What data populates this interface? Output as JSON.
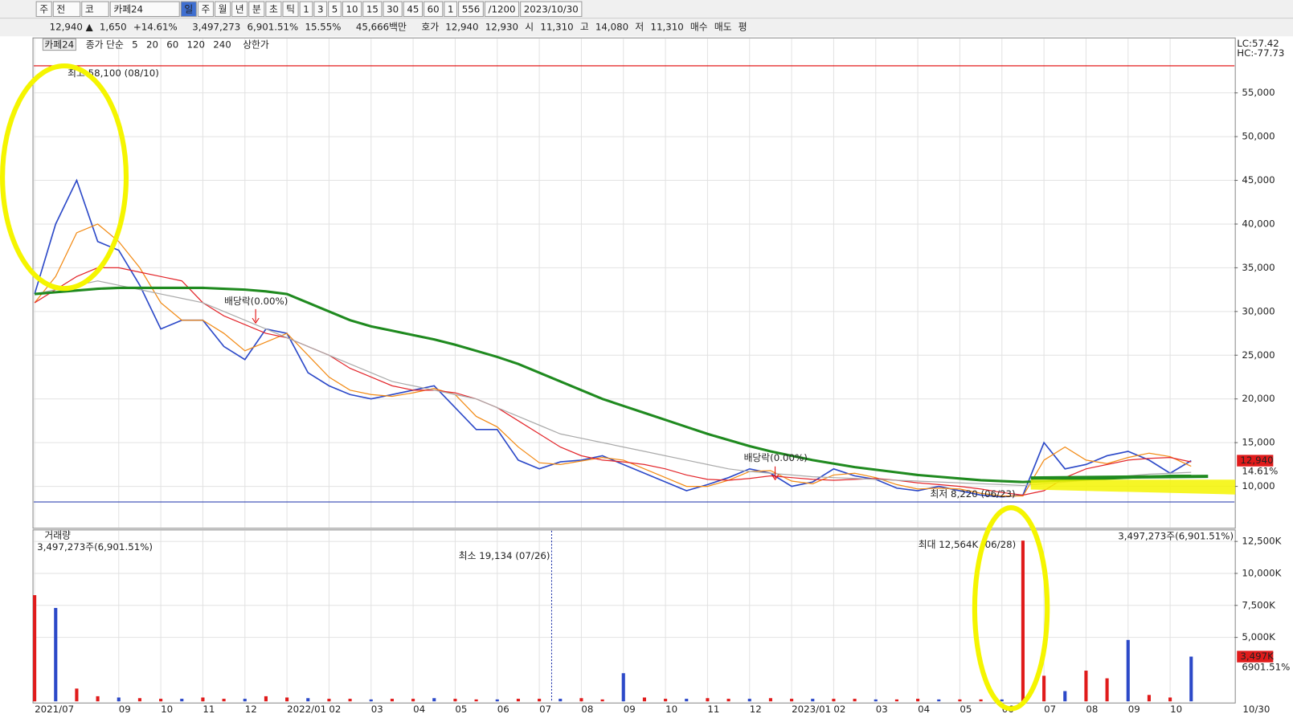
{
  "toolbar": {
    "items": [
      "주",
      "전",
      "코",
      "카페24",
      "일",
      "주",
      "월",
      "년",
      "분",
      "초",
      "틱",
      "1",
      "3",
      "5",
      "10",
      "15",
      "30",
      "45",
      "60",
      "1",
      "556",
      "/1200",
      "2023/10/30"
    ]
  },
  "quote": {
    "items": [
      "12,940 ▲",
      "1,650",
      "+14.61%",
      "3,497,273",
      "6,901.51%",
      "15.55%",
      "45,666백만",
      "호가",
      "12,940",
      "12,930",
      "시",
      "11,310",
      "고",
      "14,080",
      "저",
      "11,310",
      "매수",
      "매도",
      "평"
    ]
  },
  "chart_data": [
    {
      "type": "line",
      "title": "카페24",
      "subtitle": "종가 단순",
      "categories": [
        "2021/07",
        null,
        null,
        null,
        "09",
        null,
        "10",
        null,
        "11",
        null,
        "12",
        null,
        "2022/01",
        null,
        "02",
        null,
        "03",
        null,
        "04",
        null,
        "05",
        null,
        "06",
        null,
        "07",
        null,
        "08",
        null,
        "09",
        null,
        "10",
        null,
        "11",
        null,
        "12",
        null,
        "2023/01",
        null,
        "02",
        null,
        "03",
        null,
        "04",
        null,
        "05",
        null,
        "06",
        null,
        "07",
        null,
        "08",
        null,
        "09",
        null,
        "10",
        null
      ],
      "x_end_label": "10/30",
      "series": [
        {
          "name": "5",
          "color": "#2c49c8",
          "values": [
            32000,
            40000,
            45000,
            38000,
            37000,
            33000,
            28000,
            29000,
            29000,
            26000,
            24500,
            28000,
            27500,
            23000,
            21500,
            20500,
            20000,
            20500,
            21000,
            21500,
            19000,
            16500,
            16500,
            13000,
            12000,
            12800,
            13000,
            13500,
            12500,
            11500,
            10500,
            9500,
            10200,
            11000,
            12000,
            11500,
            10000,
            10500,
            12000,
            11200,
            10800,
            9800,
            9500,
            10000,
            9500,
            9000,
            8800,
            9000,
            15000,
            12000,
            12500,
            13500,
            14000,
            13000,
            11500,
            12940
          ]
        },
        {
          "name": "20",
          "color": "#f28a14",
          "values": [
            31000,
            34000,
            39000,
            40000,
            38000,
            35000,
            31000,
            29000,
            29000,
            27500,
            25500,
            26500,
            27500,
            25000,
            22500,
            21000,
            20500,
            20300,
            20700,
            21200,
            20500,
            18000,
            16800,
            14500,
            12700,
            12500,
            12900,
            13300,
            13000,
            12000,
            11000,
            10000,
            10000,
            10700,
            11700,
            11800,
            10600,
            10300,
            11300,
            11500,
            11000,
            10200,
            9700,
            9800,
            9700,
            9200,
            8900,
            8900,
            13000,
            14500,
            13000,
            12600,
            13300,
            13800,
            13400,
            12300
          ]
        },
        {
          "name": "60",
          "color": "#e3262b",
          "values": [
            31000,
            32500,
            34000,
            35000,
            35000,
            34500,
            34000,
            33500,
            31000,
            29500,
            28500,
            27500,
            27000,
            26000,
            25000,
            23500,
            22500,
            21500,
            21000,
            21000,
            20700,
            20000,
            19000,
            17500,
            16000,
            14500,
            13500,
            13000,
            12800,
            12500,
            12000,
            11300,
            10800,
            10700,
            10900,
            11200,
            11000,
            10800,
            10700,
            10800,
            10900,
            10700,
            10400,
            10200,
            10000,
            9700,
            9300,
            9000,
            9500,
            11000,
            12000,
            12500,
            13000,
            13200,
            13300,
            12800
          ]
        },
        {
          "name": "120",
          "color": "#aaaaaa",
          "values": [
            32000,
            32500,
            33000,
            33500,
            33000,
            32500,
            32000,
            31500,
            31000,
            30000,
            29000,
            28000,
            27000,
            26000,
            25000,
            24000,
            23000,
            22000,
            21500,
            21000,
            20500,
            20000,
            19000,
            18000,
            17000,
            16000,
            15500,
            15000,
            14500,
            14000,
            13500,
            13000,
            12500,
            12000,
            11700,
            11500,
            11300,
            11100,
            11000,
            10900,
            10800,
            10700,
            10600,
            10500,
            10400,
            10300,
            10200,
            10100,
            10300,
            10500,
            10700,
            11000,
            11200,
            11400,
            11500,
            11600
          ]
        },
        {
          "name": "240",
          "color": "#1f8a1f",
          "values": [
            32000,
            32200,
            32400,
            32600,
            32700,
            32700,
            32700,
            32700,
            32700,
            32600,
            32500,
            32300,
            32000,
            31000,
            30000,
            29000,
            28300,
            27800,
            27300,
            26800,
            26200,
            25500,
            24800,
            24000,
            23000,
            22000,
            21000,
            20000,
            19200,
            18400,
            17600,
            16800,
            16000,
            15300,
            14600,
            14000,
            13500,
            13000,
            12600,
            12200,
            11900,
            11600,
            11300,
            11100,
            10900,
            10700,
            10600,
            10500,
            10600,
            10700,
            10800,
            10900,
            11000,
            11100,
            11200,
            11200
          ]
        }
      ],
      "limit_line": {
        "name": "상한가",
        "value": 58100,
        "color": "#e00000"
      },
      "low_line": {
        "value": 8220,
        "color": "#1a2fa8"
      },
      "last": {
        "value": 12940,
        "label": "12,940"
      },
      "change_label": "14.61%",
      "annotations": [
        "최고 58,100 (08/10)",
        "최저 8,220 (06/23)",
        "배당락(0.00%)",
        "배당락(0.00%)",
        "LC:57.42",
        "HC:-77.73"
      ],
      "ylim": [
        5300,
        61100
      ],
      "yticks": [
        {
          "value": 10000,
          "label": "10,000"
        },
        {
          "value": 15000,
          "label": "15,000"
        },
        {
          "value": 20000,
          "label": "20,000"
        },
        {
          "value": 25000,
          "label": "25,000"
        },
        {
          "value": 30000,
          "label": "30,000"
        },
        {
          "value": 35000,
          "label": "35,000"
        },
        {
          "value": 40000,
          "label": "40,000"
        },
        {
          "value": 45000,
          "label": "45,000"
        },
        {
          "value": 50000,
          "label": "50,000"
        },
        {
          "value": 55000,
          "label": "55,000"
        }
      ],
      "grid": true
    },
    {
      "type": "bar",
      "title": "거래량",
      "subtitle": "3,497,273주(6,901.51%)",
      "color": "#e01b1b",
      "values": [
        8300,
        7300,
        1000,
        400,
        300,
        250,
        200,
        200,
        300,
        200,
        200,
        400,
        300,
        250,
        200,
        200,
        150,
        200,
        200,
        250,
        200,
        150,
        150,
        200,
        200,
        200,
        250,
        150,
        2200,
        300,
        200,
        200,
        250,
        200,
        200,
        250,
        200,
        200,
        200,
        200,
        150,
        150,
        200,
        150,
        150,
        150,
        150,
        12564,
        2000,
        800,
        2400,
        1800,
        4800,
        500,
        300,
        3497
      ],
      "last": {
        "value": 3497,
        "label": "3,497K"
      },
      "change_label": "6901.51%",
      "annotations": [
        "3,497,273주(6,901.51%)",
        "최소 19,134 (07/26)",
        "최대 12,564K (06/28)"
      ],
      "ylim": [
        0,
        13270
      ],
      "yticks": [
        {
          "value": 5000,
          "label": "5,000K"
        },
        {
          "value": 7500,
          "label": "7,500K"
        },
        {
          "value": 10000,
          "label": "10,000K"
        },
        {
          "value": 12500,
          "label": "12,500K"
        }
      ],
      "grid": true
    }
  ]
}
